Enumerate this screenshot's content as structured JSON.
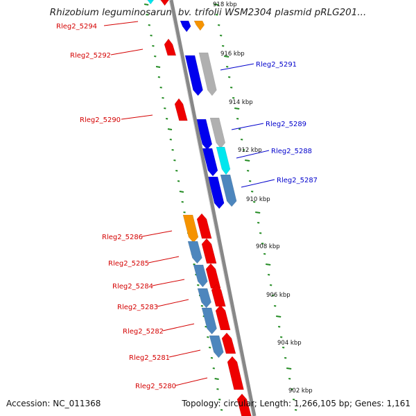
{
  "header": {
    "title": "Rhizobium leguminosarum bv. trifolii WSM2304 plasmid pRLG201..."
  },
  "footer": {
    "accession": "Accession: NC_011368",
    "summary": "Topology: circular; Length: 1,266,105 bp; Genes: 1,161"
  },
  "colors": {
    "forward_label": "#d40000",
    "reverse_label": "#0000cc",
    "red_gene": "#ee0000",
    "blue_gene": "#0000ee",
    "orange_gene": "#f59300",
    "steelblue_gene": "#4d86bd",
    "cyan_gene": "#00e6ee",
    "gray_gene": "#b0b0b0",
    "tick_green": "#228b22",
    "backbone": "#888888"
  },
  "scale_labels": [
    "918 kbp",
    "916 kbp",
    "914 kbp",
    "912 kbp",
    "910 kbp",
    "908 kbp",
    "906 kbp",
    "904 kbp",
    "902 kbp"
  ],
  "genes_forward": [
    {
      "name": "Rleg2_5294",
      "color": "red"
    },
    {
      "name": "Rleg2_5292",
      "color": "red"
    },
    {
      "name": "Rleg2_5290",
      "color": "red"
    },
    {
      "name": "Rleg2_5286",
      "color": "orange"
    },
    {
      "name": "Rleg2_5285",
      "color": "steelblue"
    },
    {
      "name": "Rleg2_5284",
      "color": "steelblue"
    },
    {
      "name": "Rleg2_5283",
      "color": "steelblue"
    },
    {
      "name": "Rleg2_5282",
      "color": "steelblue"
    },
    {
      "name": "Rleg2_5281",
      "color": "steelblue"
    },
    {
      "name": "Rleg2_5280",
      "color": "red"
    }
  ],
  "genes_reverse": [
    {
      "name": "Rleg2_5291",
      "color": "blue"
    },
    {
      "name": "Rleg2_5289",
      "color": "blue"
    },
    {
      "name": "Rleg2_5288",
      "color": "cyan"
    },
    {
      "name": "Rleg2_5287",
      "color": "blue"
    }
  ]
}
